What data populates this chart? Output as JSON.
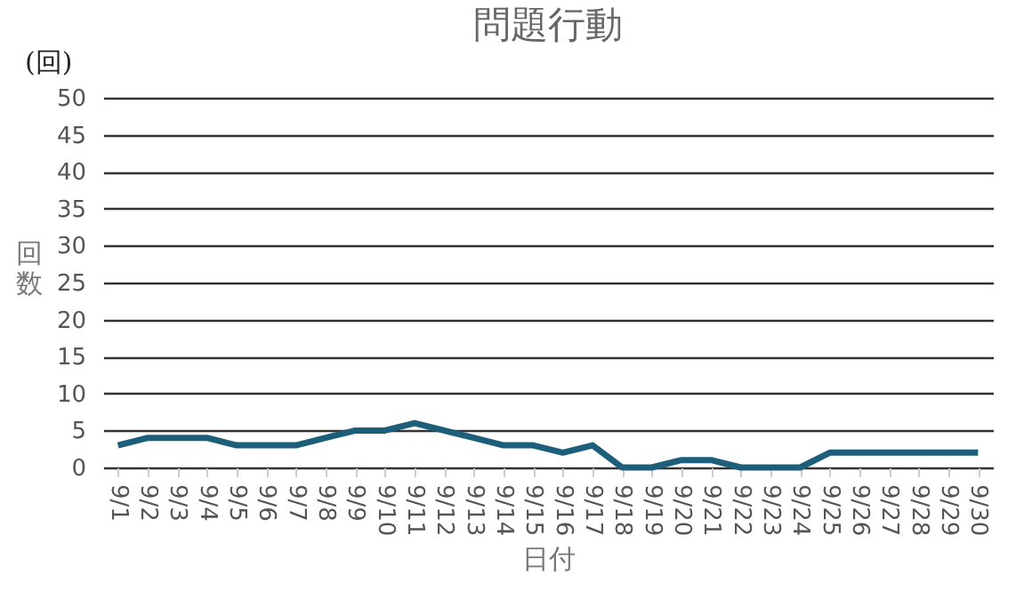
{
  "chart_data": {
    "type": "line",
    "title": "問題行動",
    "xlabel": "日付",
    "ylabel": "回数",
    "annotations": [
      "(回)"
    ],
    "categories": [
      "9/1",
      "9/2",
      "9/3",
      "9/4",
      "9/5",
      "9/6",
      "9/7",
      "9/8",
      "9/9",
      "9/10",
      "9/11",
      "9/12",
      "9/13",
      "9/14",
      "9/15",
      "9/16",
      "9/17",
      "9/18",
      "9/19",
      "9/20",
      "9/21",
      "9/22",
      "9/23",
      "9/24",
      "9/25",
      "9/26",
      "9/27",
      "9/28",
      "9/29",
      "9/30"
    ],
    "series": [
      {
        "color": "#1d5f7a",
        "values": [
          3,
          4,
          4,
          4,
          3,
          3,
          3,
          4,
          5,
          5,
          6,
          5,
          4,
          3,
          3,
          2,
          3,
          0,
          0,
          1,
          1,
          0,
          0,
          0,
          2,
          2,
          2,
          2,
          2,
          2
        ]
      }
    ],
    "ylim": [
      0,
      50
    ],
    "yticks": [
      0,
      5,
      10,
      15,
      20,
      25,
      30,
      35,
      40,
      45,
      50
    ],
    "grid": "y",
    "marker": "none",
    "line_style": "solid"
  }
}
